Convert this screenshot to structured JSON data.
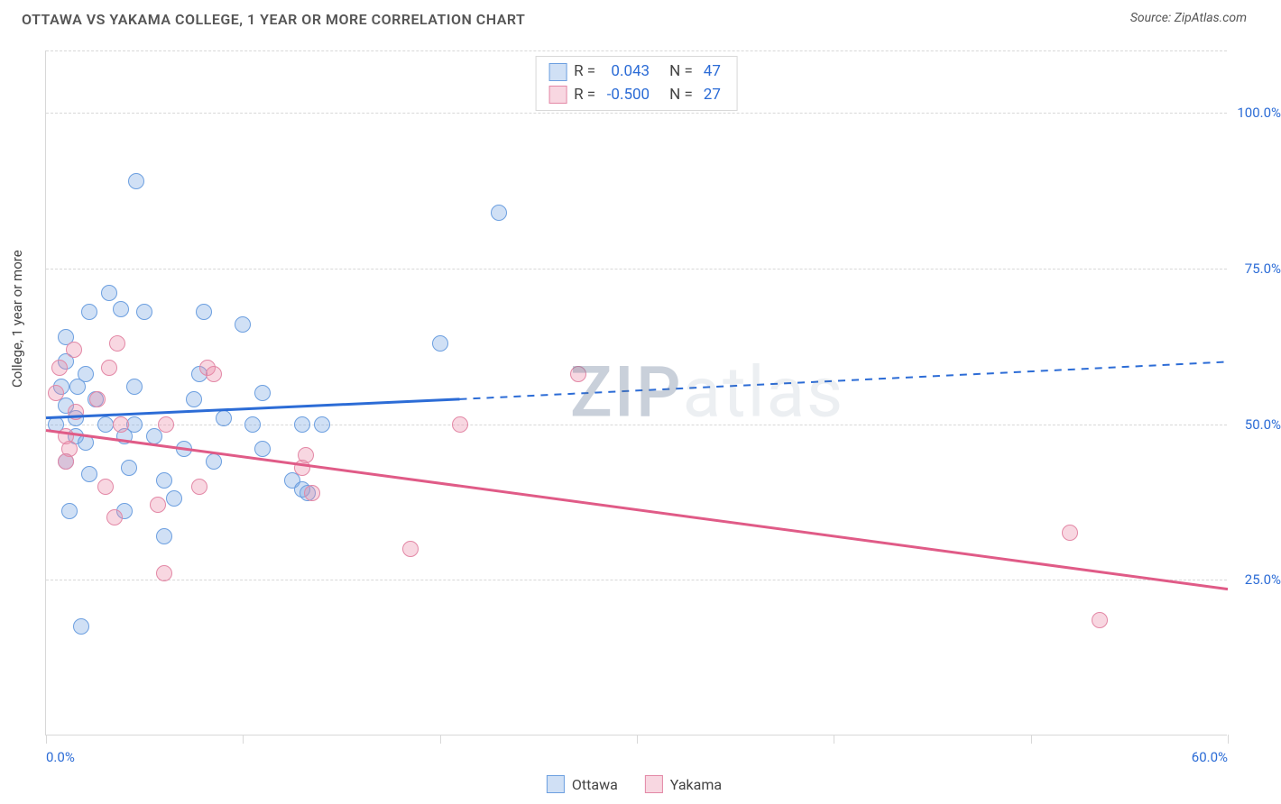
{
  "header": {
    "title": "OTTAWA VS YAKAMA COLLEGE, 1 YEAR OR MORE CORRELATION CHART",
    "source": "Source: ZipAtlas.com"
  },
  "chart": {
    "type": "scatter",
    "ylabel": "College, 1 year or more",
    "xlim": [
      0,
      60
    ],
    "ylim": [
      0,
      110
    ],
    "xticks": [
      0,
      10,
      20,
      30,
      40,
      50,
      60
    ],
    "xtick_labels_shown": {
      "0": "0.0%",
      "60": "60.0%"
    },
    "yticks": [
      25,
      50,
      75,
      100
    ],
    "ytick_labels": [
      "25.0%",
      "50.0%",
      "75.0%",
      "100.0%"
    ],
    "grid_color": "#d8d8d8",
    "axis_color": "#d8d8d8",
    "background": "#ffffff",
    "point_radius": 9,
    "point_stroke_width": 1.5,
    "watermark": {
      "dark": "ZIP",
      "light": "atlas"
    },
    "series": [
      {
        "name": "Ottawa",
        "fill": "rgba(120,165,225,0.35)",
        "stroke": "#6c9fe0",
        "trend": {
          "x1": 0,
          "y1": 51,
          "x2_solid": 21,
          "y2_solid": 54,
          "x2": 60,
          "y2": 60,
          "color": "#2c6cd6",
          "width": 3
        },
        "points": [
          [
            4.6,
            89
          ],
          [
            3.2,
            71
          ],
          [
            3.8,
            68.5
          ],
          [
            1,
            60
          ],
          [
            2,
            58
          ],
          [
            5,
            68
          ],
          [
            7.5,
            54
          ],
          [
            1.5,
            48
          ],
          [
            4.5,
            56
          ],
          [
            3,
            50
          ],
          [
            1,
            44
          ],
          [
            4,
            48
          ],
          [
            4.5,
            50
          ],
          [
            4,
            36
          ],
          [
            8,
            68
          ],
          [
            10,
            66
          ],
          [
            7.8,
            58
          ],
          [
            23,
            84
          ],
          [
            11,
            55
          ],
          [
            9,
            51
          ],
          [
            2.2,
            68
          ],
          [
            10.5,
            50
          ],
          [
            11,
            46
          ],
          [
            8.5,
            44
          ],
          [
            7,
            46
          ],
          [
            5.5,
            48
          ],
          [
            4.2,
            43
          ],
          [
            6.5,
            38
          ],
          [
            6,
            41
          ],
          [
            2.2,
            42
          ],
          [
            1.2,
            36
          ],
          [
            13,
            50
          ],
          [
            14,
            50
          ],
          [
            12.5,
            41
          ],
          [
            13.3,
            39
          ],
          [
            20,
            63
          ],
          [
            13,
            39.5
          ],
          [
            6,
            32
          ],
          [
            1.8,
            17.5
          ],
          [
            1,
            53
          ],
          [
            2,
            47
          ],
          [
            0.8,
            56
          ],
          [
            1,
            64
          ],
          [
            1.6,
            56
          ],
          [
            2.5,
            54
          ],
          [
            1.5,
            51
          ],
          [
            0.5,
            50
          ]
        ]
      },
      {
        "name": "Yakama",
        "fill": "rgba(235,140,170,0.35)",
        "stroke": "#e388a6",
        "trend": {
          "x1": 0,
          "y1": 49,
          "x2_solid": 60,
          "y2_solid": 23.5,
          "x2": 60,
          "y2": 23.5,
          "color": "#e05b87",
          "width": 3
        },
        "points": [
          [
            1.4,
            62
          ],
          [
            2.6,
            54
          ],
          [
            1.5,
            52
          ],
          [
            3.6,
            63
          ],
          [
            3.2,
            59
          ],
          [
            3.8,
            50
          ],
          [
            6.1,
            50
          ],
          [
            5.7,
            37
          ],
          [
            3.5,
            35
          ],
          [
            3,
            40
          ],
          [
            8.2,
            59
          ],
          [
            7.8,
            40
          ],
          [
            8.5,
            58
          ],
          [
            13.2,
            45
          ],
          [
            13,
            43
          ],
          [
            13.5,
            39
          ],
          [
            18.5,
            30
          ],
          [
            6,
            26
          ],
          [
            27,
            58
          ],
          [
            21,
            50
          ],
          [
            52,
            32.5
          ],
          [
            53.5,
            18.5
          ],
          [
            0.7,
            59
          ],
          [
            0.5,
            55
          ],
          [
            1,
            48
          ],
          [
            1.2,
            46
          ],
          [
            1,
            44
          ]
        ]
      }
    ],
    "legend_top": {
      "rows": [
        {
          "swatch_fill": "rgba(120,165,225,0.35)",
          "swatch_stroke": "#6c9fe0",
          "r_label": "R =",
          "r_val": "0.043",
          "n_label": "N =",
          "n_val": "47"
        },
        {
          "swatch_fill": "rgba(235,140,170,0.35)",
          "swatch_stroke": "#e388a6",
          "r_label": "R =",
          "r_val": "-0.500",
          "n_label": "N =",
          "n_val": "27"
        }
      ]
    },
    "legend_bottom": [
      {
        "swatch_fill": "rgba(120,165,225,0.35)",
        "swatch_stroke": "#6c9fe0",
        "label": "Ottawa"
      },
      {
        "swatch_fill": "rgba(235,140,170,0.35)",
        "swatch_stroke": "#e388a6",
        "label": "Yakama"
      }
    ]
  }
}
